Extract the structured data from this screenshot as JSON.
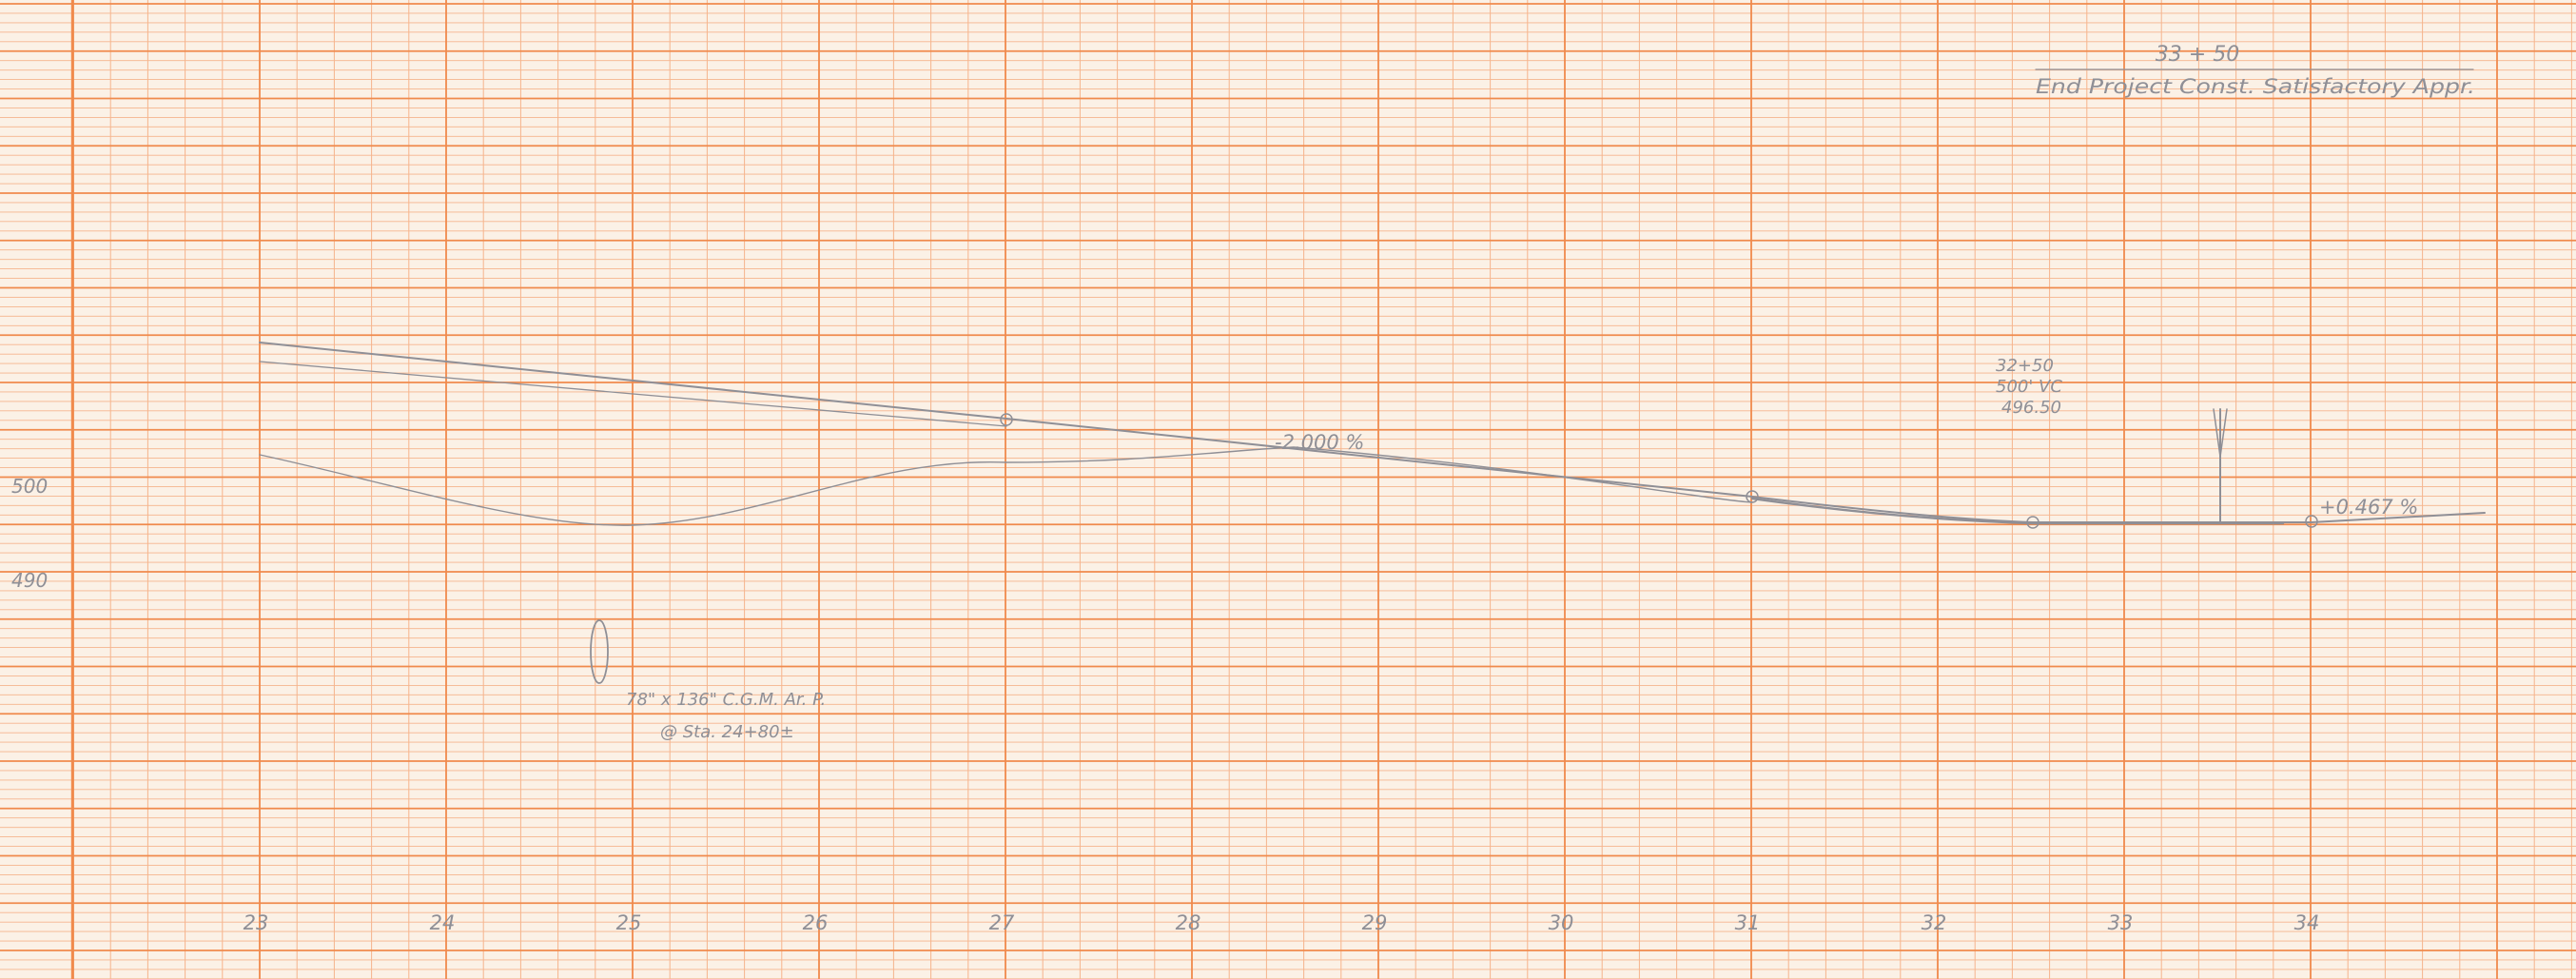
{
  "grid": {
    "paper_color": "#fbf1e6",
    "minor_line_color": "#f6b48c",
    "major_line_color": "#f08a4c",
    "pencil_color": "#8f8f96"
  },
  "header": {
    "station": "33 + 50",
    "note": "End Project Const. Satisfactory Appr."
  },
  "elevation_labels": [
    "500",
    "490"
  ],
  "station_labels": [
    "23",
    "24",
    "25",
    "26",
    "27",
    "28",
    "29",
    "30",
    "31",
    "32",
    "33",
    "34"
  ],
  "grade_labels": {
    "down": "-2.000 %",
    "up": "+0.467 %"
  },
  "curve_note": [
    "32+50",
    "500' VC",
    "496.50"
  ],
  "culvert_note": [
    "78\" x 136\" C.G.M. Ar. P.",
    "@ Sta. 24+80±"
  ]
}
